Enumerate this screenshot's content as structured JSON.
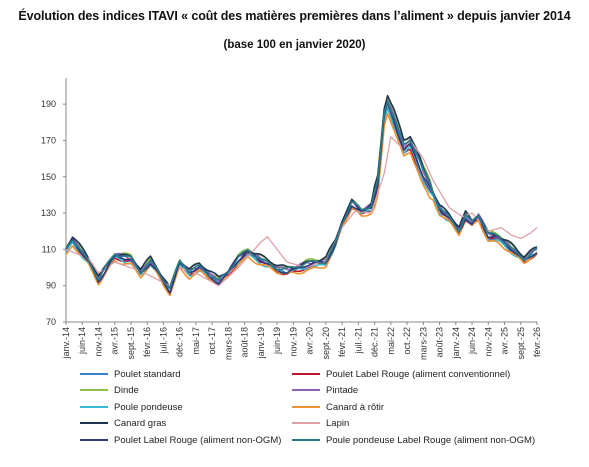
{
  "title": "Évolution des indices ITAVI « coût des matières premières dans l’aliment » depuis janvier 2014",
  "subtitle": "(base 100 en janvier 2020)",
  "chart_data": {
    "type": "line",
    "title": "Évolution des indices ITAVI « coût des matières premières dans l’aliment » depuis janvier 2014",
    "subtitle": "(base 100 en janvier 2020)",
    "xlabel": "",
    "ylabel": "",
    "ylim": [
      70,
      200
    ],
    "yticks": [
      70,
      90,
      110,
      130,
      150,
      170,
      190
    ],
    "grid": "none",
    "legend_position": "bottom",
    "x_range_months": "2014-01 to 2026-02",
    "x_tick_labels": [
      "janv.-14",
      "juin-14",
      "nov.-14",
      "avr.-15",
      "sept.-15",
      "févr.-16",
      "juil.-16",
      "déc.-16",
      "mai-17",
      "oct.-17",
      "mars-18",
      "août-18",
      "janv.-19",
      "juin-19",
      "nov.-19",
      "avr.-20",
      "sept.-20",
      "févr.-21",
      "juil.-21",
      "déc.-21",
      "mai-22",
      "oct.-22",
      "mars-23",
      "août-23",
      "janv.-24",
      "juin-24",
      "nov.-24",
      "avr.-25",
      "sept.-25",
      "févr.-26"
    ],
    "key_points": {
      "months": [
        "2014-01",
        "2014-03",
        "2014-08",
        "2014-11",
        "2015-04",
        "2015-09",
        "2015-12",
        "2016-03",
        "2016-05",
        "2016-09",
        "2016-12",
        "2017-03",
        "2017-06",
        "2017-09",
        "2017-12",
        "2018-03",
        "2018-06",
        "2018-09",
        "2018-12",
        "2019-03",
        "2019-06",
        "2019-09",
        "2019-12",
        "2020-03",
        "2020-06",
        "2020-09",
        "2020-12",
        "2021-02",
        "2021-05",
        "2021-08",
        "2021-11",
        "2022-01",
        "2022-03",
        "2022-04",
        "2022-06",
        "2022-09",
        "2022-11",
        "2023-01",
        "2023-03",
        "2023-06",
        "2023-08",
        "2023-11",
        "2024-02",
        "2024-04",
        "2024-06",
        "2024-08",
        "2024-11",
        "2025-02",
        "2025-05",
        "2025-08",
        "2025-10",
        "2025-12",
        "2026-02"
      ],
      "base": [
        109,
        115,
        103,
        93,
        106,
        104,
        97,
        103,
        98,
        87,
        102,
        97,
        100,
        96,
        92,
        97,
        104,
        108,
        105,
        102,
        99,
        98,
        99,
        101,
        102,
        103,
        113,
        124,
        135,
        130,
        133,
        145,
        183,
        190,
        181,
        165,
        168,
        160,
        150,
        140,
        132,
        127,
        120,
        128,
        124,
        128,
        117,
        116,
        112,
        107,
        104,
        107,
        109
      ]
    },
    "series": [
      {
        "name": "Poulet standard",
        "color": "#3b7fc4",
        "offset": 0
      },
      {
        "name": "Poulet Label Rouge (aliment conventionnel)",
        "color": "#c0152a",
        "offset": -1
      },
      {
        "name": "Dinde",
        "color": "#8fbe4a",
        "offset": 2
      },
      {
        "name": "Pintade",
        "color": "#8a63b4",
        "offset": 1
      },
      {
        "name": "Poule pondeuse",
        "color": "#39b8d6",
        "offset": -1
      },
      {
        "name": "Canard à rôtir",
        "color": "#f0922f",
        "offset": -2
      },
      {
        "name": "Canard gras",
        "color": "#1f3552",
        "offset": 2
      },
      {
        "name": "Lapin",
        "color": "#e0a0a8",
        "offset": 0
      },
      {
        "name": "Poulet Label Rouge (aliment non-OGM)",
        "color": "#2d3a78",
        "offset": 0
      },
      {
        "name": "Poule pondeuse Label Rouge (aliment non-OGM)",
        "color": "#2a7a8c",
        "offset": 1
      }
    ],
    "lapin_key_points": {
      "months": [
        "2014-01",
        "2014-08",
        "2014-11",
        "2015-04",
        "2015-12",
        "2016-09",
        "2016-12",
        "2017-06",
        "2017-12",
        "2018-06",
        "2018-09",
        "2019-01",
        "2019-03",
        "2019-09",
        "2020-03",
        "2020-09",
        "2021-02",
        "2021-06",
        "2021-11",
        "2022-03",
        "2022-05",
        "2022-09",
        "2022-11",
        "2023-03",
        "2023-06",
        "2023-11",
        "2024-03",
        "2024-06",
        "2024-11",
        "2025-03",
        "2025-06",
        "2025-09",
        "2025-12",
        "2026-02"
      ],
      "values": [
        110,
        105,
        97,
        103,
        98,
        90,
        100,
        96,
        90,
        100,
        106,
        114,
        117,
        103,
        100,
        104,
        122,
        131,
        130,
        152,
        172,
        165,
        170,
        160,
        148,
        133,
        128,
        130,
        120,
        122,
        118,
        116,
        119,
        122
      ]
    }
  },
  "legend": {
    "items": [
      {
        "label": "Poulet standard",
        "color": "#3b7fc4"
      },
      {
        "label": "Poulet Label Rouge (aliment conventionnel)",
        "color": "#c0152a"
      },
      {
        "label": "Dinde",
        "color": "#8fbe4a"
      },
      {
        "label": "Pintade",
        "color": "#8a63b4"
      },
      {
        "label": "Poule pondeuse",
        "color": "#39b8d6"
      },
      {
        "label": "Canard à rôtir",
        "color": "#f0922f"
      },
      {
        "label": "Canard gras",
        "color": "#1f3552"
      },
      {
        "label": "Lapin",
        "color": "#e0a0a8"
      },
      {
        "label": "Poulet Label Rouge (aliment non-OGM)",
        "color": "#2d3a78"
      },
      {
        "label": "Poule pondeuse Label Rouge (aliment non-OGM)",
        "color": "#2a7a8c"
      }
    ]
  }
}
